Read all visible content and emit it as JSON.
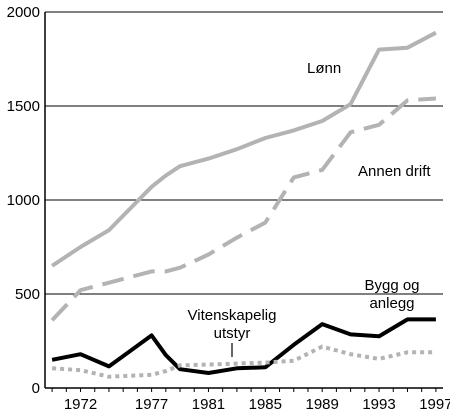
{
  "chart_data": {
    "type": "line",
    "title": "",
    "xlabel": "",
    "ylabel": "",
    "x": [
      1970,
      1972,
      1974,
      1977,
      1978,
      1979,
      1981,
      1983,
      1985,
      1987,
      1989,
      1991,
      1993,
      1995,
      1997
    ],
    "xticks": [
      1972,
      1977,
      1981,
      1985,
      1989,
      1993,
      1997
    ],
    "yticks": [
      0,
      500,
      1000,
      1500,
      2000
    ],
    "ylim": [
      0,
      2000
    ],
    "xlim": [
      1969.5,
      1997.5
    ],
    "grid": "horizontal",
    "series": [
      {
        "name": "Lønn",
        "color": "#b3b3b3",
        "style": "solid",
        "values": [
          650,
          750,
          840,
          1070,
          1130,
          1180,
          1220,
          1270,
          1330,
          1370,
          1420,
          1510,
          1800,
          1810,
          1890
        ]
      },
      {
        "name": "Annen drift",
        "color": "#b3b3b3",
        "style": "longdash",
        "values": [
          360,
          520,
          560,
          620,
          620,
          640,
          710,
          800,
          880,
          1120,
          1160,
          1360,
          1400,
          1530,
          1540
        ]
      },
      {
        "name": "Bygg og anlegg",
        "color": "#000000",
        "style": "solid",
        "values": [
          150,
          180,
          115,
          280,
          175,
          100,
          80,
          105,
          110,
          230,
          340,
          285,
          275,
          365,
          365
        ]
      },
      {
        "name": "Vitenskapelig utstyr",
        "color": "#b3b3b3",
        "style": "dotted",
        "values": [
          105,
          95,
          60,
          70,
          90,
          120,
          125,
          130,
          135,
          145,
          220,
          180,
          155,
          190,
          190
        ]
      }
    ],
    "annotations": [
      {
        "series": "Lønn",
        "lines": [
          "Lønn"
        ]
      },
      {
        "series": "Annen drift",
        "lines": [
          "Annen drift"
        ]
      },
      {
        "series": "Bygg og anlegg",
        "lines": [
          "Bygg og",
          "anlegg"
        ]
      },
      {
        "series": "Vitenskapelig utstyr",
        "lines": [
          "Vitenskapelig",
          "utstyr"
        ]
      }
    ]
  }
}
